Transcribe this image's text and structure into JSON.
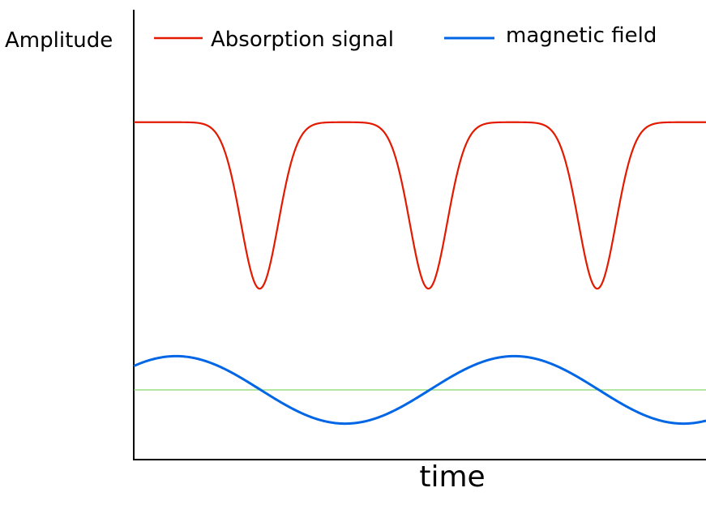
{
  "chart_data": {
    "type": "line",
    "title": "",
    "xlabel": "time",
    "ylabel": "Amplitude",
    "grid": false,
    "legend_position": "top",
    "legend": [
      {
        "label": "Absorption signal",
        "color": "#e31a00"
      },
      {
        "label": "magnetic field",
        "color": "#0066e6"
      }
    ],
    "series": [
      {
        "name": "Absorption signal",
        "color": "#e31a00",
        "description_points": {
          "baseline_level": 0.75,
          "dip_level": 0.38,
          "dip_times": [
            0.22,
            0.515,
            0.81
          ]
        }
      },
      {
        "name": "magnetic field",
        "color": "#0066e6",
        "description_points": {
          "mean_level": 0.155,
          "amplitude": 0.075,
          "peak_times": [
            0.074,
            0.665
          ],
          "trough_times": [
            0.37,
            0.96
          ]
        }
      }
    ],
    "reference_line": {
      "color": "#66cc44",
      "level": 0.155
    },
    "x_range": [
      0,
      1
    ],
    "y_range": [
      0,
      1
    ],
    "axis_color": "#000000"
  }
}
